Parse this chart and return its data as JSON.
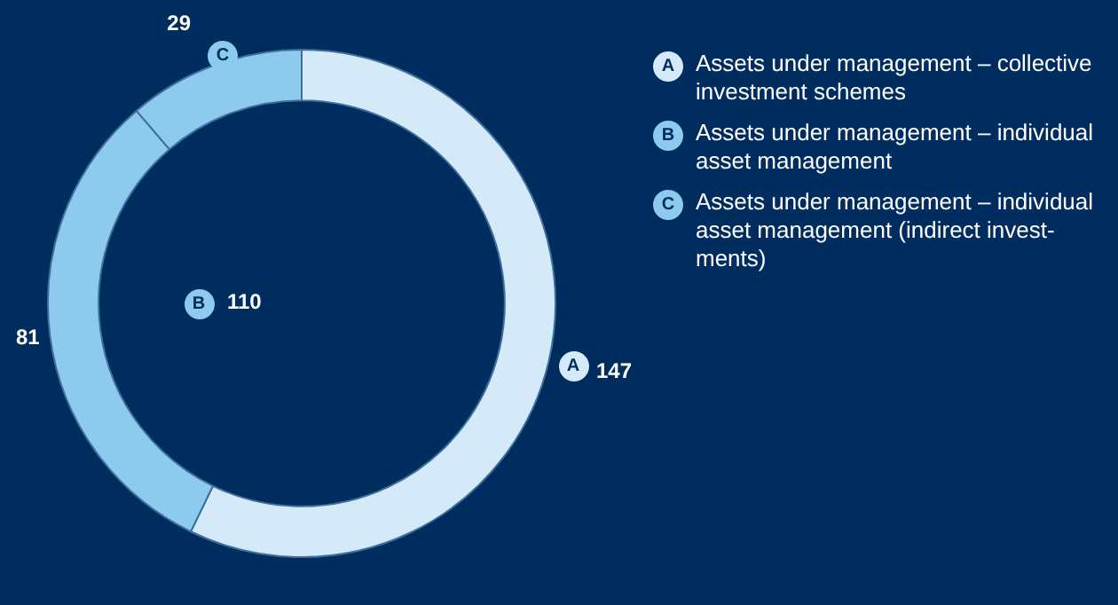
{
  "chart_data": {
    "type": "donut",
    "categories": [
      "Assets under management – collective investment schemes",
      "Assets under management – individual asset management",
      "Assets under management – individual asset management (indirect invest-ments)"
    ],
    "values": [
      147,
      81,
      29
    ],
    "colors": [
      "#d4eaf8",
      "#8ccbee",
      "#8ccbee"
    ],
    "data_labels": true,
    "legend": "right",
    "annotations": [
      "A",
      "B",
      "C",
      "110"
    ]
  }
}
